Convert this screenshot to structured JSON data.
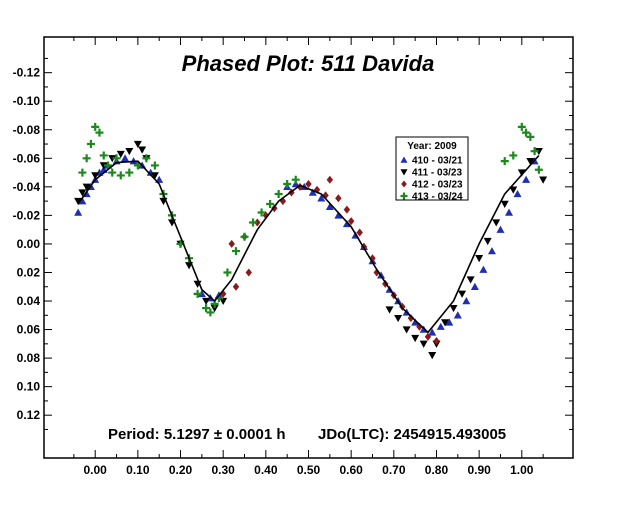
{
  "chart_data": {
    "type": "scatter",
    "title": "Phased Plot: 511 Davida",
    "xlabel": "",
    "ylabel": "",
    "xlim": [
      -0.12,
      1.12
    ],
    "ylim": [
      -0.145,
      0.15
    ],
    "y_inverted": true,
    "grid": false,
    "x_ticks": [
      "0.00",
      "0.10",
      "0.20",
      "0.30",
      "0.40",
      "0.50",
      "0.60",
      "0.70",
      "0.80",
      "0.90",
      "1.00"
    ],
    "x_tick_values": [
      0.0,
      0.1,
      0.2,
      0.3,
      0.4,
      0.5,
      0.6,
      0.7,
      0.8,
      0.9,
      1.0
    ],
    "y_ticks": [
      "-0.12",
      "-0.10",
      "-0.08",
      "-0.06",
      "-0.04",
      "-0.02",
      "0.00",
      "0.02",
      "0.04",
      "0.06",
      "0.08",
      "0.10",
      "0.12"
    ],
    "y_tick_values": [
      -0.12,
      -0.1,
      -0.08,
      -0.06,
      -0.04,
      -0.02,
      0.0,
      0.02,
      0.04,
      0.06,
      0.08,
      0.1,
      0.12
    ],
    "annotations": {
      "period": "Period: 5.1297 ± 0.0001 h",
      "jdo": "JDo(LTC): 2454915.493005"
    },
    "legend": {
      "title": "Year: 2009",
      "placement": "top-right",
      "entries": [
        {
          "label": "410 - 03/21",
          "color": "#1f2fb4",
          "marker": "triangle-up"
        },
        {
          "label": "411 - 03/23",
          "color": "#000000",
          "marker": "triangle-down"
        },
        {
          "label": "412 - 03/23",
          "color": "#8b1a1a",
          "marker": "diamond"
        },
        {
          "label": "413 - 03/24",
          "color": "#1a8a1a",
          "marker": "plus"
        }
      ]
    },
    "fit_curve": {
      "x": [
        -0.04,
        0.0,
        0.05,
        0.1,
        0.15,
        0.2,
        0.25,
        0.28,
        0.32,
        0.38,
        0.43,
        0.48,
        0.53,
        0.6,
        0.66,
        0.72,
        0.78,
        0.84,
        0.9,
        0.96,
        1.04
      ],
      "y": [
        -0.028,
        -0.045,
        -0.057,
        -0.058,
        -0.042,
        -0.005,
        0.032,
        0.04,
        0.025,
        -0.01,
        -0.03,
        -0.041,
        -0.035,
        -0.012,
        0.018,
        0.045,
        0.062,
        0.04,
        0.0,
        -0.035,
        -0.062
      ]
    },
    "series": [
      {
        "name": "410 - 03/21",
        "color": "#1f2fb4",
        "marker": "triangle-up",
        "x": [
          -0.04,
          -0.03,
          -0.02,
          -0.01,
          0.0,
          0.01,
          0.02,
          0.03,
          0.05,
          0.07,
          0.09,
          0.11,
          0.13,
          0.15,
          0.25,
          0.27,
          0.29,
          0.45,
          0.47,
          0.49,
          0.51,
          0.53,
          0.55,
          0.57,
          0.59,
          0.61,
          0.63,
          0.65,
          0.67,
          0.69,
          0.71,
          0.73,
          0.75,
          0.77,
          0.79,
          0.81,
          0.83,
          0.85,
          0.87,
          0.89,
          0.91,
          0.93,
          0.95,
          0.97,
          0.99,
          1.01,
          1.03
        ],
        "y": [
          -0.022,
          -0.03,
          -0.035,
          -0.04,
          -0.045,
          -0.05,
          -0.052,
          -0.055,
          -0.058,
          -0.06,
          -0.058,
          -0.055,
          -0.05,
          -0.045,
          0.035,
          0.038,
          0.036,
          -0.04,
          -0.042,
          -0.04,
          -0.036,
          -0.032,
          -0.026,
          -0.02,
          -0.014,
          -0.006,
          0.002,
          0.012,
          0.022,
          0.032,
          0.04,
          0.048,
          0.055,
          0.06,
          0.062,
          0.058,
          0.055,
          0.05,
          0.04,
          0.03,
          0.018,
          0.005,
          -0.01,
          -0.022,
          -0.035,
          -0.045,
          -0.058
        ]
      },
      {
        "name": "411 - 03/23",
        "color": "#000000",
        "marker": "triangle-down",
        "x": [
          -0.04,
          -0.03,
          -0.02,
          0.0,
          0.02,
          0.04,
          0.06,
          0.08,
          0.1,
          0.11,
          0.12,
          0.14,
          0.16,
          0.18,
          0.2,
          0.22,
          0.24,
          0.26,
          0.28,
          0.3,
          0.69,
          0.71,
          0.73,
          0.75,
          0.77,
          0.79,
          0.8,
          0.82,
          0.84,
          0.86,
          0.88,
          0.9,
          0.92,
          0.94,
          0.96,
          0.98,
          1.0,
          1.02,
          1.04,
          1.05
        ],
        "y": [
          -0.03,
          -0.036,
          -0.04,
          -0.048,
          -0.055,
          -0.06,
          -0.063,
          -0.065,
          -0.07,
          -0.066,
          -0.06,
          -0.048,
          -0.03,
          -0.015,
          0.0,
          0.015,
          0.028,
          0.04,
          0.045,
          0.04,
          0.046,
          0.052,
          0.06,
          0.066,
          0.07,
          0.078,
          0.07,
          0.055,
          0.045,
          0.035,
          0.025,
          0.01,
          -0.002,
          -0.015,
          -0.028,
          -0.038,
          -0.05,
          -0.058,
          -0.065,
          -0.045
        ]
      },
      {
        "name": "412 - 03/23",
        "color": "#8b1a1a",
        "marker": "diamond",
        "x": [
          0.3,
          0.32,
          0.33,
          0.35,
          0.36,
          0.38,
          0.4,
          0.42,
          0.44,
          0.46,
          0.48,
          0.5,
          0.52,
          0.54,
          0.55,
          0.57,
          0.59,
          0.6,
          0.62,
          0.63,
          0.65,
          0.66,
          0.68,
          0.7,
          0.72,
          0.74,
          0.76,
          0.78,
          0.8
        ],
        "y": [
          0.035,
          0.0,
          0.03,
          -0.005,
          0.02,
          -0.015,
          -0.02,
          -0.025,
          -0.03,
          -0.036,
          -0.04,
          -0.042,
          -0.038,
          -0.034,
          -0.045,
          -0.032,
          -0.024,
          -0.016,
          -0.008,
          0.002,
          0.01,
          0.02,
          0.028,
          0.036,
          0.044,
          0.052,
          0.058,
          0.065,
          0.068
        ]
      },
      {
        "name": "413 - 03/24",
        "color": "#1a8a1a",
        "marker": "plus",
        "x": [
          -0.03,
          -0.02,
          -0.01,
          0.0,
          0.01,
          0.02,
          0.03,
          0.04,
          0.05,
          0.06,
          0.08,
          0.1,
          0.12,
          0.14,
          0.16,
          0.18,
          0.2,
          0.22,
          0.24,
          0.26,
          0.27,
          0.28,
          0.29,
          0.31,
          0.33,
          0.35,
          0.37,
          0.39,
          0.41,
          0.43,
          0.45,
          0.47,
          0.96,
          0.98,
          1.0,
          1.01,
          1.02,
          1.03,
          1.04
        ],
        "y": [
          -0.05,
          -0.06,
          -0.07,
          -0.082,
          -0.078,
          -0.062,
          -0.055,
          -0.05,
          -0.06,
          -0.048,
          -0.05,
          -0.055,
          -0.06,
          -0.055,
          -0.035,
          -0.02,
          0.0,
          0.01,
          0.035,
          0.045,
          0.048,
          0.042,
          0.038,
          0.02,
          0.005,
          -0.005,
          -0.015,
          -0.022,
          -0.028,
          -0.035,
          -0.042,
          -0.045,
          -0.058,
          -0.062,
          -0.082,
          -0.078,
          -0.075,
          -0.065,
          -0.052
        ]
      }
    ]
  }
}
